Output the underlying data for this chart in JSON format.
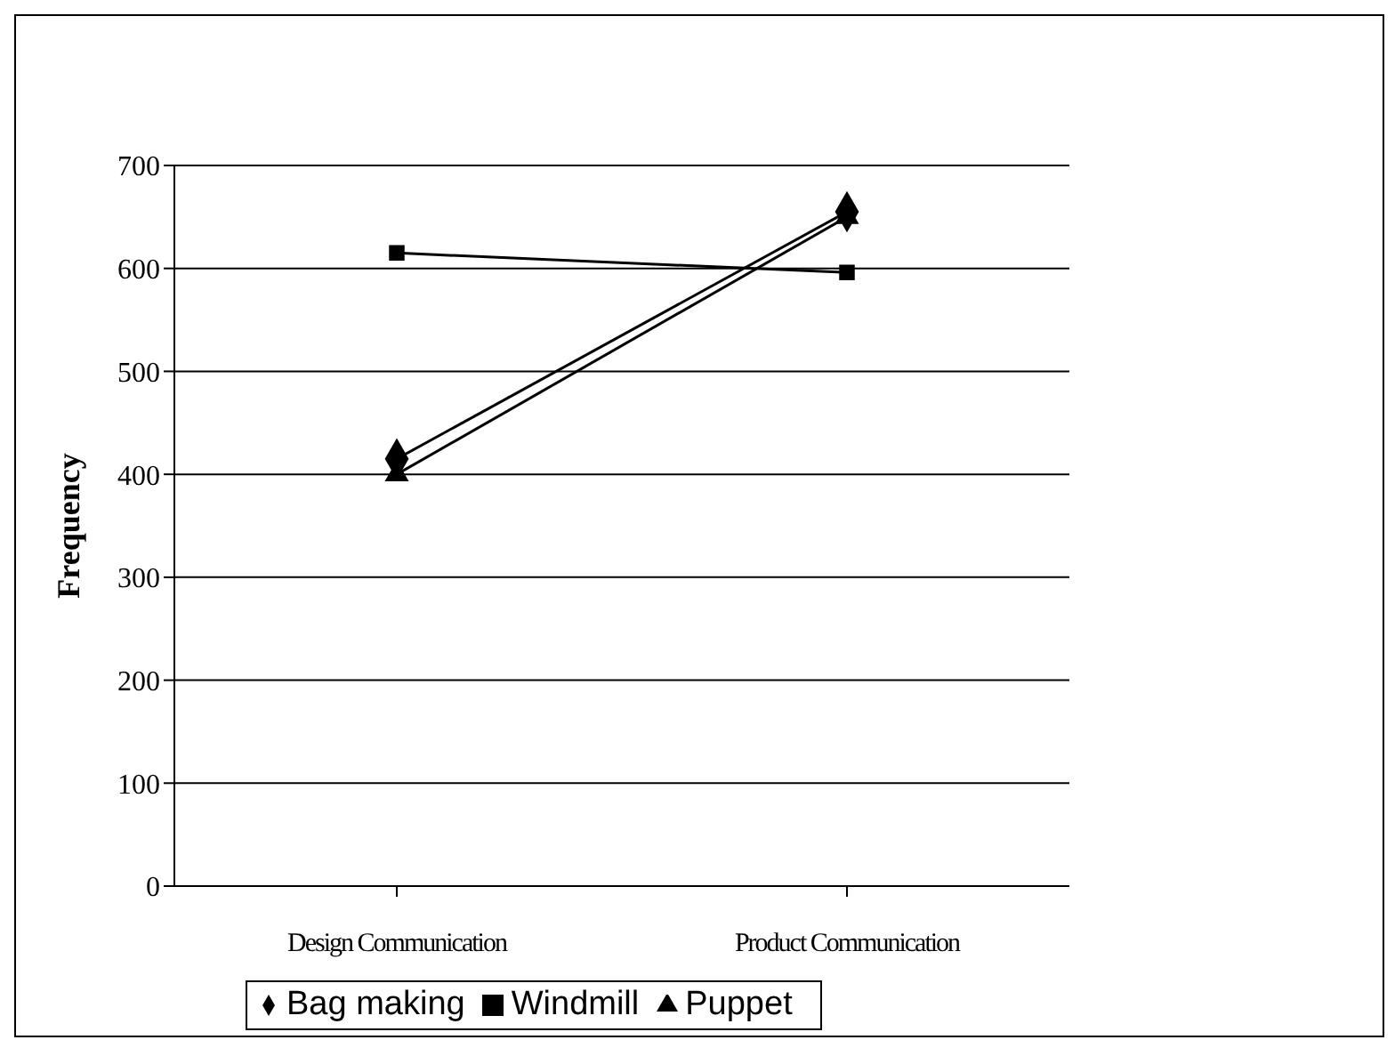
{
  "chart_data": {
    "type": "line",
    "ylabel": "Frequency",
    "categories": [
      "Design Communication",
      "Product Communication"
    ],
    "series": [
      {
        "name": "Bag making",
        "color": "#000000",
        "marker": "diamond",
        "values": [
          415,
          655
        ]
      },
      {
        "name": "Windmill",
        "color": "#000000",
        "marker": "square",
        "values": [
          615,
          596
        ]
      },
      {
        "name": "Puppet",
        "color": "#000000",
        "marker": "triangle",
        "values": [
          400,
          650
        ]
      }
    ],
    "ylim": [
      0,
      700
    ],
    "yticks": [
      0,
      100,
      200,
      300,
      400,
      500,
      600,
      700
    ],
    "grid": "y",
    "legend": "bottom"
  }
}
